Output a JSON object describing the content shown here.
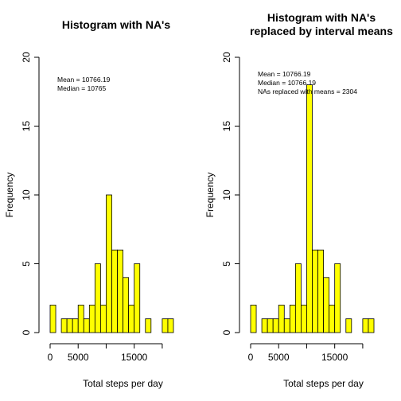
{
  "chart_data": [
    {
      "type": "bar",
      "title": [
        "Histogram with NA's"
      ],
      "xlabel": "Total steps per day",
      "ylabel": "Frequency",
      "bin_width": 1000,
      "bin_start": 0,
      "values": [
        2,
        0,
        1,
        1,
        1,
        2,
        1,
        2,
        5,
        2,
        10,
        6,
        6,
        4,
        2,
        5,
        0,
        1,
        0,
        0,
        1,
        1
      ],
      "xlim": [
        0,
        22000
      ],
      "ylim": [
        0,
        20
      ],
      "xticks": [
        0,
        5000,
        15000
      ],
      "xtick_labels": [
        "0",
        "5000",
        "15000"
      ],
      "xtick_minor": [
        10000,
        20000
      ],
      "yticks": [
        0,
        5,
        10,
        15,
        20
      ],
      "ytick_labels": [
        "0",
        "5",
        "10",
        "15",
        "20"
      ],
      "annotations": [
        "Mean = 10766.19",
        "Median = 10765"
      ],
      "bar_color": "#ffff00"
    },
    {
      "type": "bar",
      "title": [
        "Histogram with NA's",
        "replaced by interval means"
      ],
      "xlabel": "Total steps per day",
      "ylabel": "Frequency",
      "bin_width": 1000,
      "bin_start": 0,
      "values": [
        2,
        0,
        1,
        1,
        1,
        2,
        1,
        2,
        5,
        2,
        18,
        6,
        6,
        4,
        2,
        5,
        0,
        1,
        0,
        0,
        1,
        1
      ],
      "xlim": [
        0,
        22000
      ],
      "ylim": [
        0,
        20
      ],
      "xticks": [
        0,
        5000,
        15000
      ],
      "xtick_labels": [
        "0",
        "5000",
        "15000"
      ],
      "xtick_minor": [
        10000,
        20000
      ],
      "yticks": [
        0,
        5,
        10,
        15,
        20
      ],
      "ytick_labels": [
        "0",
        "5",
        "10",
        "15",
        "20"
      ],
      "annotations": [
        "Mean = 10766.19",
        "Median = 10766.19",
        "NAs replaced with means = 2304"
      ],
      "bar_color": "#ffff00"
    }
  ]
}
